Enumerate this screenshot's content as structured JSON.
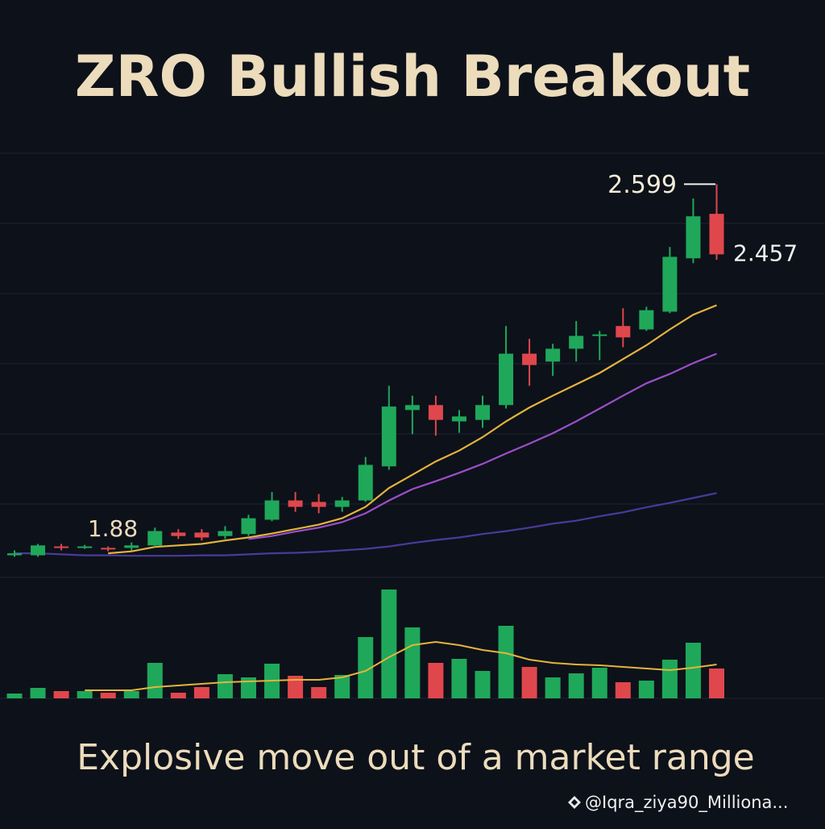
{
  "chart_data": {
    "type": "candlestick",
    "title": "ZRO Bullish Breakout",
    "subtitle": "Explosive move out of a market range",
    "source": "@Iqra_ziya90_Milliona...",
    "up_color": "#1fa85a",
    "down_color": "#e0474c",
    "ylim": [
      1.8,
      2.66
    ],
    "open": [
      1.848,
      1.848,
      1.866,
      1.865,
      1.863,
      1.863,
      1.868,
      1.894,
      1.894,
      1.887,
      1.891,
      1.92,
      1.959,
      1.956,
      1.946,
      1.959,
      2.028,
      2.142,
      2.152,
      2.119,
      2.122,
      2.152,
      2.256,
      2.24,
      2.266,
      2.292,
      2.312,
      2.305,
      2.341,
      2.449,
      2.539
    ],
    "high": [
      1.858,
      1.871,
      1.871,
      1.869,
      1.866,
      1.874,
      1.904,
      1.901,
      1.901,
      1.907,
      1.93,
      1.976,
      1.976,
      1.972,
      1.966,
      2.047,
      2.191,
      2.171,
      2.171,
      2.142,
      2.171,
      2.312,
      2.286,
      2.276,
      2.322,
      2.302,
      2.348,
      2.351,
      2.472,
      2.57,
      2.599
    ],
    "low": [
      1.845,
      1.845,
      1.858,
      1.861,
      1.856,
      1.858,
      1.865,
      1.881,
      1.878,
      1.881,
      1.887,
      1.917,
      1.936,
      1.933,
      1.936,
      1.956,
      2.021,
      2.093,
      2.09,
      2.096,
      2.106,
      2.145,
      2.191,
      2.211,
      2.24,
      2.243,
      2.269,
      2.302,
      2.338,
      2.439,
      2.446
    ],
    "close": [
      1.852,
      1.868,
      1.863,
      1.866,
      1.86,
      1.868,
      1.897,
      1.887,
      1.884,
      1.897,
      1.923,
      1.959,
      1.946,
      1.946,
      1.959,
      2.031,
      2.149,
      2.152,
      2.122,
      2.129,
      2.152,
      2.256,
      2.233,
      2.266,
      2.292,
      2.295,
      2.289,
      2.344,
      2.452,
      2.534,
      2.457
    ],
    "series": [
      {
        "color": "#e4b43c",
        "values": [
          null,
          null,
          null,
          null,
          1.852,
          1.856,
          1.865,
          1.868,
          1.871,
          1.878,
          1.884,
          1.892,
          1.901,
          1.91,
          1.923,
          1.946,
          1.984,
          2.011,
          2.038,
          2.06,
          2.087,
          2.119,
          2.147,
          2.171,
          2.194,
          2.217,
          2.245,
          2.273,
          2.305,
          2.335,
          2.354
        ]
      },
      {
        "color": "#9b4fc9",
        "values": [
          null,
          null,
          null,
          null,
          null,
          null,
          null,
          null,
          null,
          null,
          1.881,
          1.887,
          1.896,
          1.904,
          1.915,
          1.933,
          1.959,
          1.982,
          1.998,
          2.015,
          2.033,
          2.054,
          2.074,
          2.095,
          2.119,
          2.145,
          2.171,
          2.196,
          2.215,
          2.237,
          2.256
        ]
      },
      {
        "color": "#4a3a9a",
        "values": [
          1.852,
          1.852,
          1.85,
          1.848,
          1.848,
          1.847,
          1.847,
          1.847,
          1.848,
          1.848,
          1.85,
          1.852,
          1.853,
          1.855,
          1.858,
          1.861,
          1.866,
          1.873,
          1.879,
          1.884,
          1.891,
          1.897,
          1.904,
          1.912,
          1.918,
          1.927,
          1.935,
          1.945,
          1.954,
          1.964,
          1.974
        ]
      }
    ],
    "annotations": [
      1.88,
      2.599,
      2.457
    ],
    "volume": {
      "ylim": [
        0,
        150
      ],
      "values": [
        6,
        13,
        9,
        9,
        7,
        9,
        44,
        7,
        14,
        30,
        26,
        43,
        28,
        14,
        29,
        76,
        135,
        88,
        44,
        49,
        34,
        90,
        39,
        26,
        31,
        38,
        20,
        22,
        48,
        69,
        37
      ],
      "ma": {
        "color": "#e4b43c",
        "values": [
          null,
          null,
          null,
          10,
          10,
          10,
          14,
          16,
          18,
          20,
          21,
          22,
          23,
          23,
          26,
          34,
          51,
          66,
          70,
          66,
          60,
          56,
          48,
          44,
          42,
          41,
          39,
          37,
          35,
          38,
          42
        ]
      }
    }
  }
}
